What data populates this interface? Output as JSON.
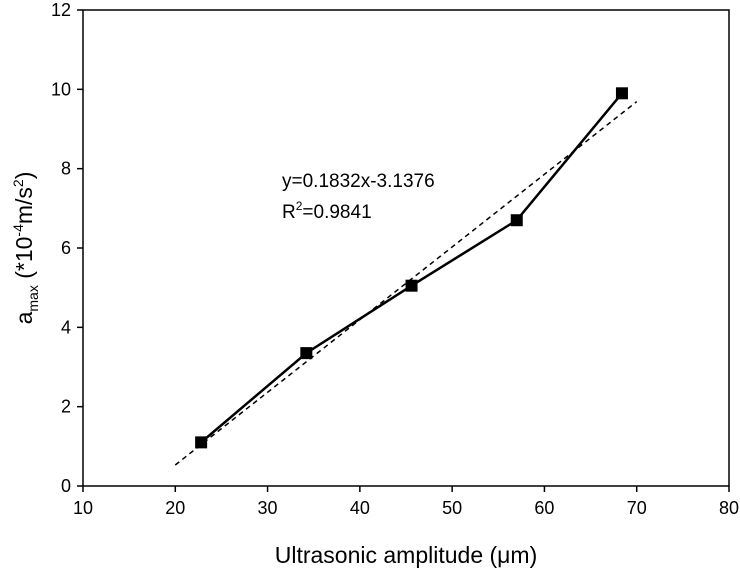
{
  "chart_data": {
    "type": "line",
    "xlabel": "Ultrasonic amplitude (μm)",
    "ylabel": {
      "main": "a",
      "sub": "max",
      "unit_a": " (*10",
      "unit_sup": "-4",
      "unit_b": "m/s",
      "unit_sup2": "2",
      "unit_c": ")"
    },
    "annotation": {
      "equation": "y=0.1832x-3.1376",
      "r": "R",
      "r_sup": "2",
      "r_value": "=0.9841"
    },
    "x": [
      22.8,
      34.2,
      45.6,
      57.0,
      68.4
    ],
    "series": [
      {
        "color": "#000000",
        "values": [
          1.1,
          3.35,
          5.05,
          6.7,
          9.9
        ],
        "markers": true,
        "dashed": false
      },
      {
        "color": "#000000",
        "x": [
          20,
          70
        ],
        "values": [
          0.53,
          9.69
        ],
        "markers": false,
        "dashed": true
      }
    ],
    "xlim": [
      10,
      80
    ],
    "xticks": [
      10,
      20,
      30,
      40,
      50,
      60,
      70,
      80
    ],
    "ylim": [
      0,
      12
    ],
    "yticks": [
      0,
      2,
      4,
      6,
      8,
      10,
      12
    ]
  }
}
